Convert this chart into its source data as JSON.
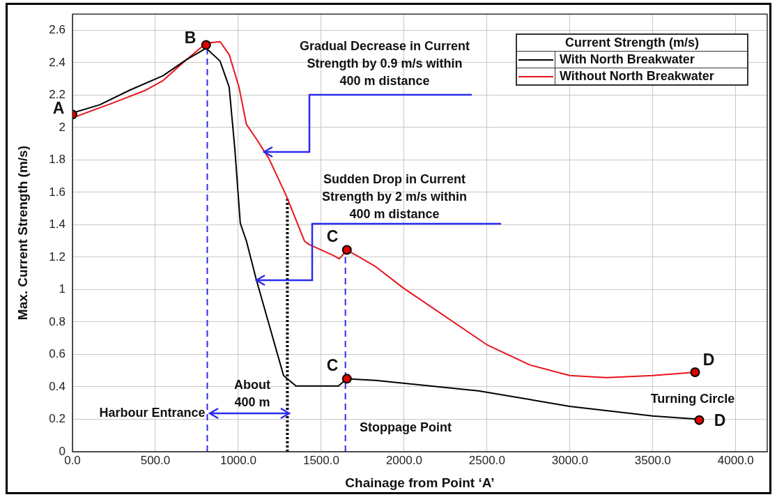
{
  "chart_data": {
    "type": "line",
    "xlabel": "Chainage from Point ‘A’",
    "ylabel": "Max. Current Strength (m/s)",
    "legend_title": "Current Strength (m/s)",
    "legend": "top right",
    "grid": true,
    "xlim": [
      0,
      4190
    ],
    "ylim": [
      0,
      2.7
    ],
    "xticks": [
      {
        "value": 0,
        "label": "0.0"
      },
      {
        "value": 500,
        "label": "500.0"
      },
      {
        "value": 1000,
        "label": "1000.0"
      },
      {
        "value": 1500,
        "label": "1500.0"
      },
      {
        "value": 2000,
        "label": "2000.0"
      },
      {
        "value": 2500,
        "label": "2500.0"
      },
      {
        "value": 3000,
        "label": "3000.0"
      },
      {
        "value": 3500,
        "label": "3500.0"
      },
      {
        "value": 4000,
        "label": "4000.0"
      }
    ],
    "yticks": [
      0,
      0.2,
      0.4,
      0.6,
      0.8,
      1,
      1.2,
      1.4,
      1.6,
      1.8,
      2,
      2.2,
      2.4,
      2.6
    ],
    "series": [
      {
        "name": "With North Breakwater",
        "type": "line",
        "color": "#000000",
        "marker": "none",
        "x": [
          0,
          164,
          344,
          546,
          689,
          806,
          890,
          945,
          979,
          1012,
          1049,
          1109,
          1184,
          1273,
          1348,
          1604,
          1655,
          1831,
          2449,
          2999,
          3499,
          3780
        ],
        "values": [
          2.09,
          2.14,
          2.23,
          2.32,
          2.42,
          2.49,
          2.41,
          2.25,
          1.87,
          1.41,
          1.3,
          1.06,
          0.79,
          0.47,
          0.405,
          0.405,
          0.45,
          0.44,
          0.375,
          0.28,
          0.22,
          0.2
        ]
      },
      {
        "name": "Without North Breakwater",
        "type": "line",
        "color": "#e8141c",
        "marker": "none",
        "x": [
          0,
          239,
          441,
          546,
          689,
          806,
          890,
          945,
          1004,
          1049,
          1109,
          1184,
          1289,
          1399,
          1424,
          1575,
          1609,
          1655,
          1831,
          1995,
          2499,
          2759,
          2999,
          3221,
          3499,
          3755
        ],
        "values": [
          2.06,
          2.15,
          2.23,
          2.29,
          2.42,
          2.52,
          2.53,
          2.45,
          2.25,
          2.02,
          1.93,
          1.81,
          1.58,
          1.3,
          1.28,
          1.21,
          1.19,
          1.245,
          1.14,
          1.01,
          0.66,
          0.535,
          0.47,
          0.457,
          0.47,
          0.49
        ]
      },
      {
        "type": "line",
        "color": "#2b2bf0",
        "marker": "none",
        "line_style": "dashed",
        "x": [
          813,
          813
        ],
        "values": [
          0,
          2.49
        ]
      },
      {
        "type": "line",
        "color": "#2b2bf0",
        "marker": "none",
        "line_style": "dashed",
        "x": [
          1646,
          1646
        ],
        "values": [
          0,
          1.245
        ]
      },
      {
        "type": "line",
        "color": "#000000",
        "marker": "none",
        "line_style": "dotted",
        "x": [
          1296,
          1296
        ],
        "values": [
          0,
          1.56
        ]
      },
      {
        "type": "scatter",
        "color": "#e00000",
        "marker": "circle",
        "x": [
          0,
          806,
          1655,
          1655,
          3755,
          3780
        ],
        "values": [
          2.08,
          2.51,
          1.245,
          0.45,
          0.49,
          0.195
        ]
      }
    ],
    "annotations": [
      "Gradual Decrease in Current\nStrength by 0.9 m/s within\n400 m distance",
      "Sudden Drop in Current\nStrength by 2 m/s within\n400 m distance",
      "About\n400 m",
      {
        "text": "Harbour Entrance",
        "x": 813,
        "y": 0.24
      },
      "Stoppage Point",
      "Turning Circle",
      "A",
      "B",
      "C",
      "C",
      "D",
      "D"
    ]
  }
}
